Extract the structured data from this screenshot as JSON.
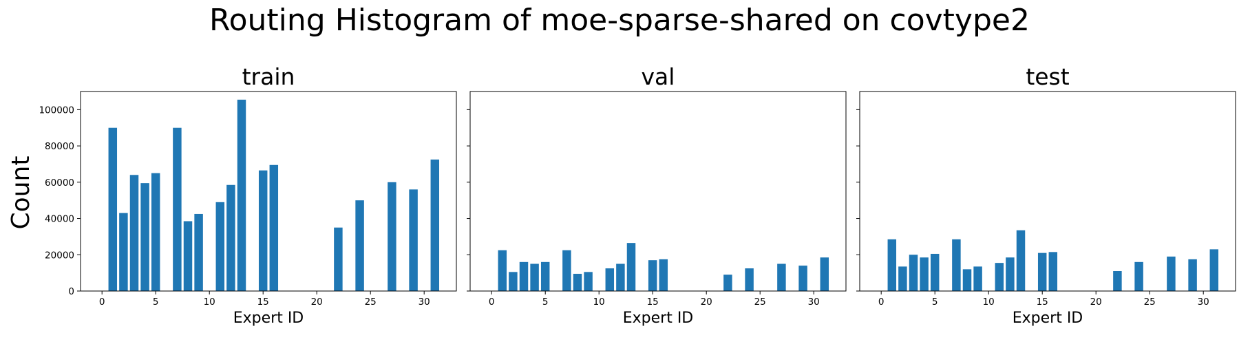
{
  "chart_data": {
    "type": "bar",
    "title": "Routing Histogram of moe-sparse-shared on covtype2",
    "ylabel": "Count",
    "xlim": [
      -2,
      33
    ],
    "ylim": [
      0,
      110000
    ],
    "xticks": [
      0,
      5,
      10,
      15,
      20,
      25,
      30
    ],
    "yticks": [
      0,
      20000,
      40000,
      60000,
      80000,
      100000
    ],
    "bar_color": "#1f77b4",
    "sharey": true,
    "grid": false,
    "panels": [
      {
        "title": "train",
        "xlabel": "Expert ID",
        "x": [
          1,
          2,
          3,
          4,
          5,
          7,
          8,
          9,
          11,
          12,
          13,
          15,
          16,
          22,
          24,
          27,
          29,
          31
        ],
        "values": [
          90000,
          43000,
          64000,
          59500,
          65000,
          90000,
          38500,
          42500,
          49000,
          58500,
          105500,
          66500,
          69500,
          35000,
          50000,
          60000,
          56000,
          72500
        ]
      },
      {
        "title": "val",
        "xlabel": "Expert ID",
        "x": [
          1,
          2,
          3,
          4,
          5,
          7,
          8,
          9,
          11,
          12,
          13,
          15,
          16,
          22,
          24,
          27,
          29,
          31
        ],
        "values": [
          22500,
          10500,
          16000,
          15000,
          16000,
          22500,
          9500,
          10500,
          12500,
          15000,
          26500,
          17000,
          17500,
          9000,
          12500,
          15000,
          14000,
          18500
        ]
      },
      {
        "title": "test",
        "xlabel": "Expert ID",
        "x": [
          1,
          2,
          3,
          4,
          5,
          7,
          8,
          9,
          11,
          12,
          13,
          15,
          16,
          22,
          24,
          27,
          29,
          31
        ],
        "values": [
          28500,
          13500,
          20000,
          18500,
          20500,
          28500,
          12000,
          13500,
          15500,
          18500,
          33500,
          21000,
          21500,
          11000,
          16000,
          19000,
          17500,
          23000
        ]
      }
    ]
  }
}
